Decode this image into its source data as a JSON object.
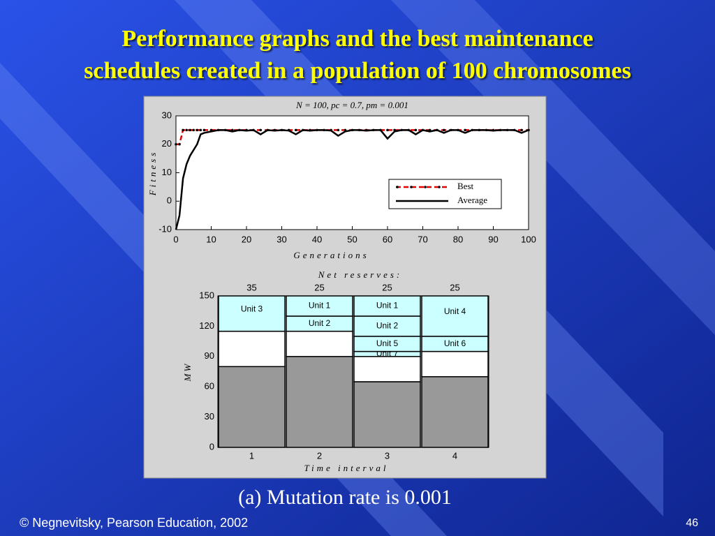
{
  "slide": {
    "title_lines": [
      "Performance graphs and the best maintenance",
      "schedules created in a population of 100 chromosomes"
    ],
    "caption": "(a) Mutation rate is 0.001",
    "footer": "© Negnevitsky, Pearson Education, 2002",
    "page": "46"
  },
  "chart_data": [
    {
      "type": "line",
      "subtitle": "N = 100,  pc = 0.7,  pm = 0.001",
      "x_label": "Generations",
      "y_label": "Fitness",
      "x": [
        0,
        1,
        2,
        3,
        4,
        5,
        6,
        7,
        8,
        10,
        12,
        14,
        16,
        18,
        20,
        22,
        24,
        26,
        28,
        30,
        32,
        34,
        36,
        38,
        40,
        42,
        44,
        46,
        48,
        50,
        52,
        54,
        56,
        58,
        60,
        62,
        64,
        66,
        68,
        70,
        72,
        74,
        76,
        78,
        80,
        82,
        84,
        86,
        88,
        90,
        92,
        94,
        96,
        98,
        100
      ],
      "series": [
        {
          "name": "Best",
          "color": "#e00000",
          "marker_color": "#000000",
          "values": [
            20,
            20,
            25,
            25,
            25,
            25,
            25,
            25,
            25,
            25,
            25,
            25,
            25,
            25,
            25,
            25,
            25,
            25,
            25,
            25,
            25,
            25,
            25,
            25,
            25,
            25,
            25,
            25,
            25,
            25,
            25,
            25,
            25,
            25,
            25,
            25,
            25,
            25,
            25,
            25,
            25,
            25,
            25,
            25,
            25,
            25,
            25,
            25,
            25,
            25,
            25,
            25,
            25,
            25,
            25
          ]
        },
        {
          "name": "Average",
          "color": "#000000",
          "values": [
            -10,
            -5,
            8,
            13,
            16,
            18,
            20,
            23.5,
            24,
            24.5,
            25,
            25,
            24.5,
            25,
            24.8,
            25,
            23.5,
            25,
            24.8,
            25,
            24.8,
            23.5,
            25,
            24.8,
            25,
            25,
            24.8,
            23,
            24.5,
            25,
            25,
            24.8,
            25,
            25,
            22,
            24.5,
            25,
            25,
            23.5,
            25,
            24.5,
            25,
            24,
            25,
            25,
            24,
            25,
            25,
            25,
            24.8,
            25,
            25,
            25,
            24,
            25
          ]
        }
      ],
      "xlim": [
        0,
        100
      ],
      "xticks": [
        0,
        10,
        20,
        30,
        40,
        50,
        60,
        70,
        80,
        90,
        100
      ],
      "ylim": [
        -10,
        30
      ],
      "yticks": [
        -10,
        0,
        10,
        20,
        30
      ],
      "legend": "lower right"
    },
    {
      "type": "stacked_bar",
      "top_title": "Net reserves:",
      "x_label": "Time interval",
      "y_label": "MW",
      "categories": [
        "1",
        "2",
        "3",
        "4"
      ],
      "stacks": [
        [
          {
            "value": 80,
            "color": "#999999"
          },
          {
            "value": 35,
            "color": "#ffffff",
            "reserve": true
          },
          {
            "value": 35,
            "color": "#ccffff",
            "label": "Unit 3"
          }
        ],
        [
          {
            "value": 90,
            "color": "#999999"
          },
          {
            "value": 25,
            "color": "#ffffff",
            "reserve": true
          },
          {
            "value": 15,
            "color": "#ccffff",
            "label": "Unit 2"
          },
          {
            "value": 20,
            "color": "#ccffff",
            "label": "Unit 1"
          }
        ],
        [
          {
            "value": 65,
            "color": "#999999"
          },
          {
            "value": 25,
            "color": "#ffffff",
            "reserve": true
          },
          {
            "value": 5,
            "color": "#ccffff",
            "label": "Unit 7"
          },
          {
            "value": 15,
            "color": "#ccffff",
            "label": "Unit 5"
          },
          {
            "value": 20,
            "color": "#ccffff",
            "label": "Unit 2"
          },
          {
            "value": 20,
            "color": "#ccffff",
            "label": "Unit 1"
          }
        ],
        [
          {
            "value": 70,
            "color": "#999999"
          },
          {
            "value": 25,
            "color": "#ffffff",
            "reserve": true
          },
          {
            "value": 15,
            "color": "#ccffff",
            "label": "Unit 6"
          },
          {
            "value": 40,
            "color": "#ccffff",
            "label": "Unit 4"
          }
        ]
      ],
      "ylim": [
        0,
        150
      ],
      "yticks": [
        0,
        30,
        60,
        90,
        120,
        150
      ]
    }
  ]
}
